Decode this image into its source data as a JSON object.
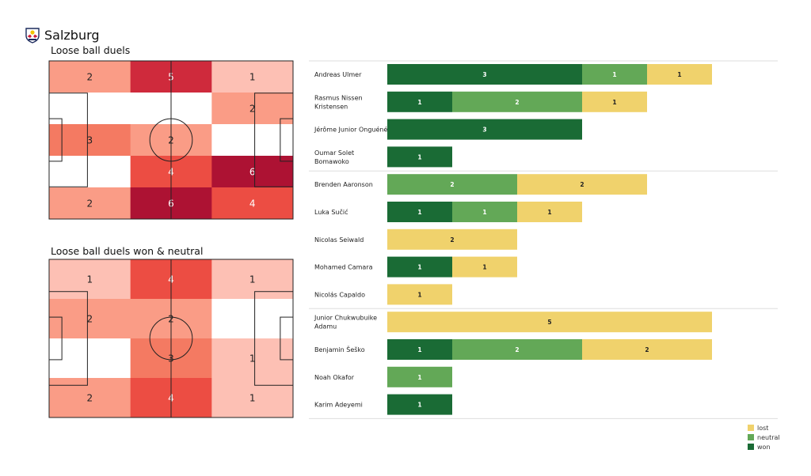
{
  "team": {
    "name": "Salzburg",
    "logo_icon": "red-bull-salzburg-crest-icon"
  },
  "colors": {
    "won": "#1a6b35",
    "neutral": "#63a857",
    "lost": "#f0d26c",
    "heat_max": "#ad1233",
    "separator": "#dddddd"
  },
  "chart_data": [
    {
      "type": "heatmap",
      "title": "Loose ball duels",
      "cells": [
        [
          2,
          5,
          1
        ],
        [
          null,
          null,
          2
        ],
        [
          3,
          2,
          null
        ],
        [
          null,
          4,
          6
        ],
        [
          2,
          6,
          4
        ]
      ]
    },
    {
      "type": "heatmap",
      "title": "Loose ball duels won & neutral",
      "cells": [
        [
          1,
          4,
          1
        ],
        [
          2,
          2,
          null
        ],
        [
          null,
          3,
          1
        ],
        [
          2,
          4,
          1
        ]
      ]
    },
    {
      "type": "bar",
      "stacked": true,
      "orientation": "horizontal",
      "categories": [
        "Andreas Ulmer",
        "Rasmus Nissen Kristensen",
        "Jérôme Junior Onguéné",
        "Oumar Solet Bomawoko",
        "Brenden  Aaronson",
        "Luka Sučić",
        "Nicolas Seiwald",
        "Mohamed Camara",
        "Nicolás Capaldo",
        "Junior Chukwubuike Adamu",
        "Benjamin Šeško",
        "Noah Okafor",
        "Karim Adeyemi"
      ],
      "label_lines": [
        [
          "Andreas Ulmer"
        ],
        [
          "Rasmus Nissen",
          "Kristensen"
        ],
        [
          "Jérôme Junior Onguéné"
        ],
        [
          "Oumar Solet",
          "Bomawoko"
        ],
        [
          "Brenden  Aaronson"
        ],
        [
          "Luka Sučić"
        ],
        [
          "Nicolas Seiwald"
        ],
        [
          "Mohamed Camara"
        ],
        [
          "Nicolás Capaldo"
        ],
        [
          "Junior Chukwubuike",
          "Adamu"
        ],
        [
          "Benjamin Šeško"
        ],
        [
          "Noah Okafor"
        ],
        [
          "Karim Adeyemi"
        ]
      ],
      "groups_after_index": [
        3,
        8
      ],
      "series": [
        {
          "name": "won",
          "values": [
            3,
            1,
            3,
            1,
            0,
            1,
            0,
            1,
            0,
            0,
            1,
            0,
            1
          ]
        },
        {
          "name": "neutral",
          "values": [
            1,
            2,
            0,
            0,
            2,
            1,
            0,
            0,
            0,
            0,
            2,
            1,
            0
          ]
        },
        {
          "name": "lost",
          "values": [
            1,
            1,
            0,
            0,
            2,
            1,
            2,
            1,
            1,
            5,
            2,
            0,
            0
          ]
        }
      ],
      "xlim": [
        0,
        5
      ],
      "legend": [
        "lost",
        "neutral",
        "won"
      ],
      "legend_position": "bottom-right"
    }
  ]
}
